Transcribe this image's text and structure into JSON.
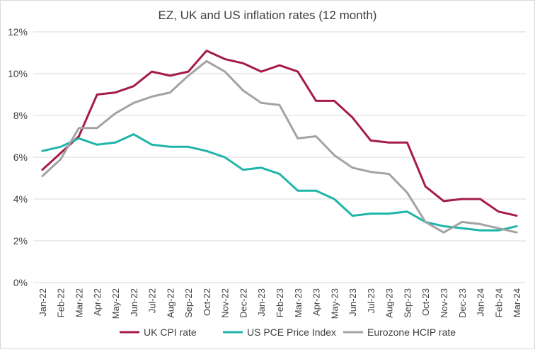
{
  "chart_data": {
    "type": "line",
    "title": "EZ, UK and US inflation rates (12 month)",
    "xlabel": "",
    "ylabel": "",
    "categories": [
      "Jan-22",
      "Feb-22",
      "Mar-22",
      "Apr-22",
      "May-22",
      "Jun-22",
      "Jul-22",
      "Aug-22",
      "Sep-22",
      "Oct-22",
      "Nov-22",
      "Dec-22",
      "Jan-23",
      "Feb-23",
      "Mar-23",
      "Apr-23",
      "May-23",
      "Jun-23",
      "Jul-23",
      "Aug-23",
      "Sep-23",
      "Oct-23",
      "Nov-23",
      "Dec-23",
      "Jan-24",
      "Feb-24",
      "Mar-24"
    ],
    "ylim": [
      0,
      12
    ],
    "yticks": [
      0,
      2,
      4,
      6,
      8,
      10,
      12
    ],
    "ytick_labels": [
      "0%",
      "2%",
      "4%",
      "6%",
      "8%",
      "10%",
      "12%"
    ],
    "grid": true,
    "legend_position": "bottom",
    "series": [
      {
        "name": "UK CPI rate",
        "color": "#a51c45",
        "values": [
          5.4,
          6.2,
          7.0,
          9.0,
          9.1,
          9.4,
          10.1,
          9.9,
          10.1,
          11.1,
          10.7,
          10.5,
          10.1,
          10.4,
          10.1,
          8.7,
          8.7,
          7.9,
          6.8,
          6.7,
          6.7,
          4.6,
          3.9,
          4.0,
          4.0,
          3.4,
          3.2
        ]
      },
      {
        "name": "US PCE Price Index",
        "color": "#1fb5aa",
        "values": [
          6.3,
          6.5,
          6.9,
          6.6,
          6.7,
          7.1,
          6.6,
          6.5,
          6.5,
          6.3,
          6.0,
          5.4,
          5.5,
          5.2,
          4.4,
          4.4,
          4.0,
          3.2,
          3.3,
          3.3,
          3.4,
          2.9,
          2.7,
          2.6,
          2.5,
          2.5,
          2.7
        ]
      },
      {
        "name": "Eurozone HCIP rate",
        "color": "#a3a3a3",
        "values": [
          5.1,
          5.9,
          7.4,
          7.4,
          8.1,
          8.6,
          8.9,
          9.1,
          9.9,
          10.6,
          10.1,
          9.2,
          8.6,
          8.5,
          6.9,
          7.0,
          6.1,
          5.5,
          5.3,
          5.2,
          4.3,
          2.9,
          2.4,
          2.9,
          2.8,
          2.6,
          2.4
        ]
      }
    ]
  }
}
